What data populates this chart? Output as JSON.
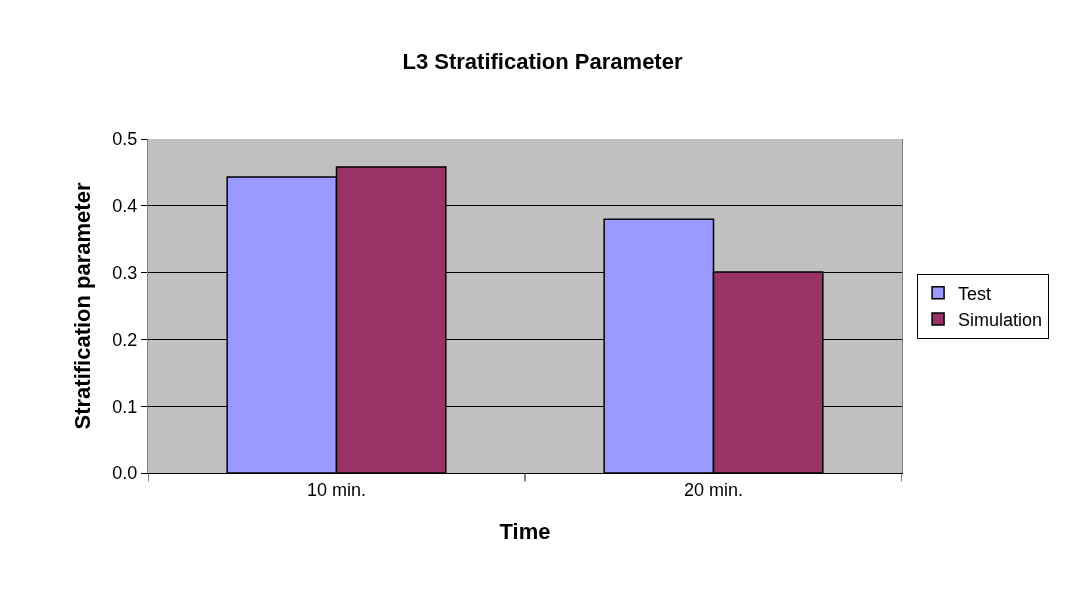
{
  "chart_data": {
    "type": "bar",
    "title": "L3 Stratification Parameter",
    "xlabel": "Time",
    "ylabel": "Stratification parameter",
    "categories": [
      "10 min.",
      "20 min."
    ],
    "series": [
      {
        "name": "Test",
        "color": "#9999ff",
        "values": [
          0.443,
          0.38
        ]
      },
      {
        "name": "Simulation",
        "color": "#993366",
        "values": [
          0.458,
          0.301
        ]
      }
    ],
    "ylim": [
      0,
      0.5
    ],
    "yticks": [
      {
        "value": 0,
        "label": "0.0"
      },
      {
        "value": 0.1,
        "label": "0.1"
      },
      {
        "value": 0.2,
        "label": "0.2"
      },
      {
        "value": 0.3,
        "label": "0.3"
      },
      {
        "value": 0.4,
        "label": "0.4"
      },
      {
        "value": 0.5,
        "label": "0.5"
      }
    ],
    "grid": "y",
    "legend": "right"
  }
}
